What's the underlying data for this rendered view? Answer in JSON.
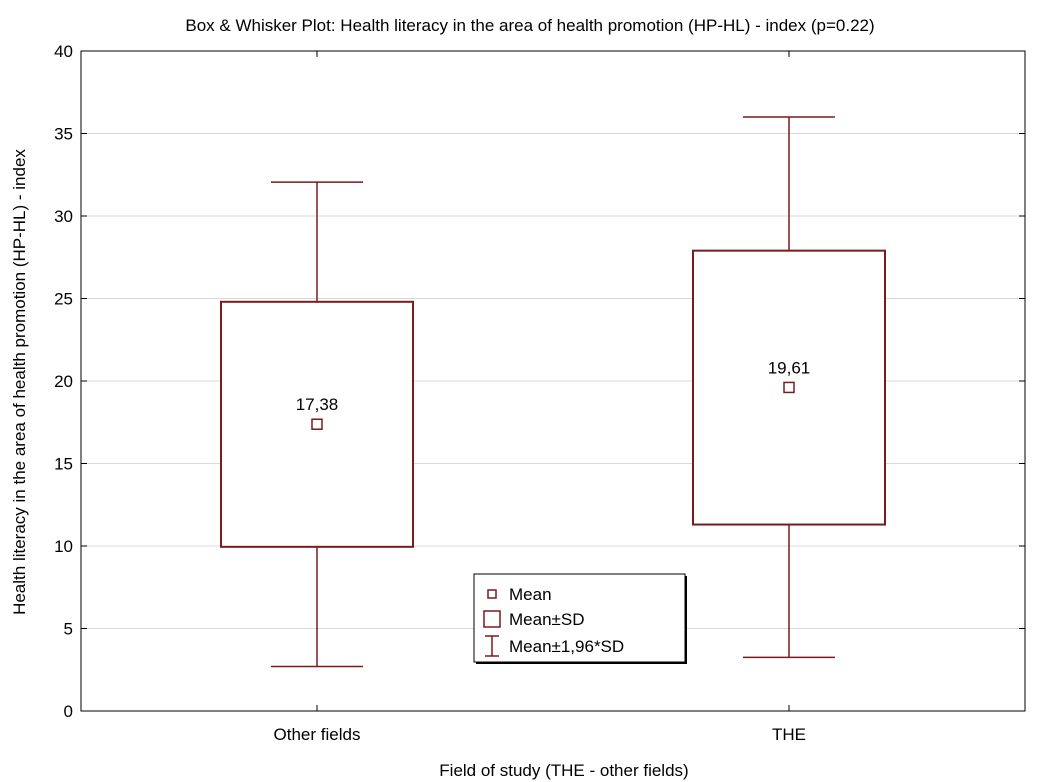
{
  "chart_data": {
    "type": "box",
    "title": "Box & Whisker Plot: Health literacy in the area of health promotion (HP-HL) - index (p=0.22)",
    "xlabel": "Field of study (THE - other fields)",
    "ylabel": "Health literacy in the area of health promotion (HP-HL) - index",
    "ylim": [
      0,
      40
    ],
    "yticks": [
      0,
      5,
      10,
      15,
      20,
      25,
      30,
      35,
      40
    ],
    "grid": true,
    "categories": [
      "Other fields",
      "THE"
    ],
    "boxes": [
      {
        "category": "Other fields",
        "mean": 17.38,
        "mean_label": "17,38",
        "box_low": 9.95,
        "box_high": 24.8,
        "whisker_low": 2.7,
        "whisker_high": 32.05
      },
      {
        "category": "THE",
        "mean": 19.61,
        "mean_label": "19,61",
        "box_low": 11.3,
        "box_high": 27.9,
        "whisker_low": 3.25,
        "whisker_high": 36.0
      }
    ],
    "legend": {
      "position": "bottom-center",
      "items": [
        "Mean",
        "Mean±SD",
        "Mean±1,96*SD"
      ]
    },
    "colors": {
      "series": "#7a1a1a",
      "grid": "#d9d9d9",
      "axis": "#000000"
    }
  }
}
